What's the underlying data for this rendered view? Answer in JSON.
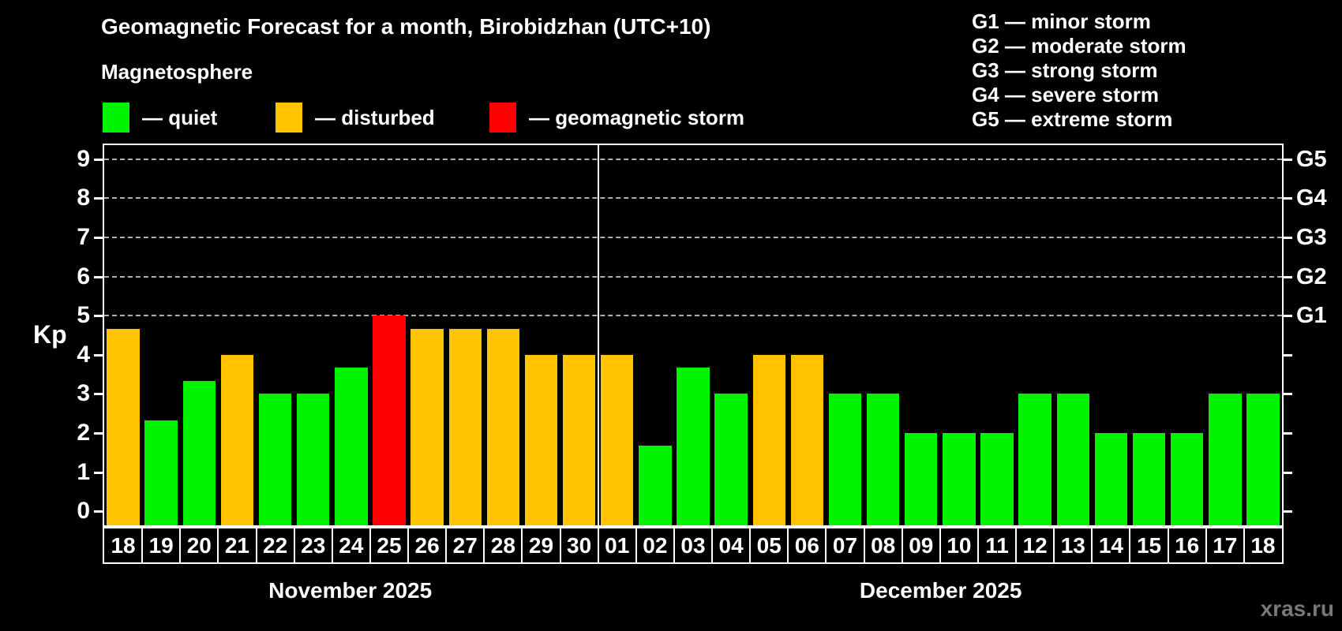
{
  "title": "Geomagnetic Forecast for a month, Birobidzhan (UTC+10)",
  "subtitle": "Magnetosphere",
  "legend": [
    {
      "key": "quiet",
      "label": "— quiet"
    },
    {
      "key": "disturbed",
      "label": "— disturbed"
    },
    {
      "key": "storm",
      "label": "— geomagnetic storm"
    }
  ],
  "status_colors": {
    "quiet": "#00f400",
    "disturbed": "#ffc300",
    "storm": "#ff0000"
  },
  "g_legend": [
    "G1 — minor storm",
    "G2 — moderate storm",
    "G3 — strong storm",
    "G4 — severe storm",
    "G5 — extreme storm"
  ],
  "watermark": "xras.ru",
  "chart_data": {
    "type": "bar",
    "title": "Geomagnetic Forecast for a month, Birobidzhan (UTC+10)",
    "ylabel": "Kp",
    "ylim": [
      -0.36,
      9.36
    ],
    "yticks": [
      0,
      1,
      2,
      3,
      4,
      5,
      6,
      7,
      8,
      9
    ],
    "gridlines": [
      5,
      6,
      7,
      8,
      9
    ],
    "right_axis": [
      {
        "value": 5,
        "label": "G1"
      },
      {
        "value": 6,
        "label": "G2"
      },
      {
        "value": 7,
        "label": "G3"
      },
      {
        "value": 8,
        "label": "G4"
      },
      {
        "value": 9,
        "label": "G5"
      }
    ],
    "months": [
      {
        "label": "November 2025",
        "days": 13
      },
      {
        "label": "December 2025",
        "days": 18
      }
    ],
    "categories": [
      "18",
      "19",
      "20",
      "21",
      "22",
      "23",
      "24",
      "25",
      "26",
      "27",
      "28",
      "29",
      "30",
      "01",
      "02",
      "03",
      "04",
      "05",
      "06",
      "07",
      "08",
      "09",
      "10",
      "11",
      "12",
      "13",
      "14",
      "15",
      "16",
      "17",
      "18"
    ],
    "values": [
      4.67,
      2.33,
      3.33,
      4.0,
      3.0,
      3.0,
      3.67,
      5.0,
      4.67,
      4.67,
      4.67,
      4.0,
      4.0,
      4.0,
      1.67,
      3.67,
      3.0,
      4.0,
      4.0,
      3.0,
      3.0,
      2.0,
      2.0,
      2.0,
      3.0,
      3.0,
      2.0,
      2.0,
      2.0,
      3.0,
      3.0
    ],
    "statuses": [
      "disturbed",
      "quiet",
      "quiet",
      "disturbed",
      "quiet",
      "quiet",
      "quiet",
      "storm",
      "disturbed",
      "disturbed",
      "disturbed",
      "disturbed",
      "disturbed",
      "disturbed",
      "quiet",
      "quiet",
      "quiet",
      "disturbed",
      "disturbed",
      "quiet",
      "quiet",
      "quiet",
      "quiet",
      "quiet",
      "quiet",
      "quiet",
      "quiet",
      "quiet",
      "quiet",
      "quiet",
      "quiet"
    ]
  }
}
